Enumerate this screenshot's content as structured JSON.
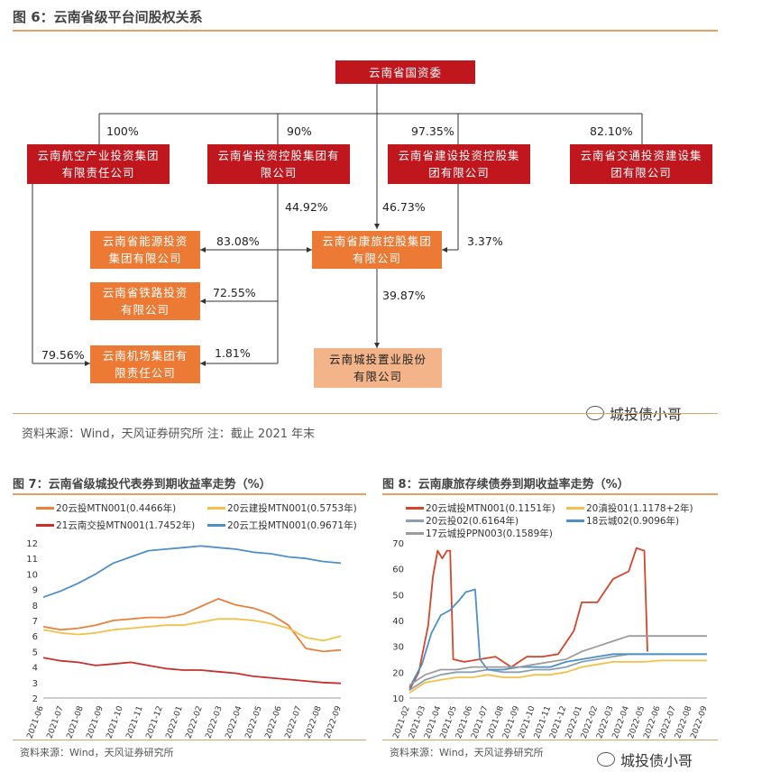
{
  "fig6": {
    "title": "图 6：云南省级平台间股权关系",
    "source": "资料来源：Wind，天风证券研究所    注：截止 2021 年末",
    "nodes": {
      "root": "云南省国资委",
      "aviation": "云南航空产业投资集团有限责任公司",
      "investment": "云南省投资控股集团有限公司",
      "construction": "云南省建设投资控股集团有限公司",
      "transport": "云南省交通投资建设集团有限公司",
      "energy": "云南省能源投资集团有限公司",
      "railway": "云南省铁路投资有限公司",
      "airport": "云南机场集团有限责任公司",
      "kanglv": "云南省康旅控股集团有限公司",
      "city": "云南城投置业股份有限公司"
    },
    "edges": {
      "aviation": "100%",
      "investment": "90%",
      "construction": "97.35%",
      "transport": "82.10%",
      "inv_kanglv": "44.92%",
      "root_kanglv": "46.73%",
      "energy": "83.08%",
      "railway": "72.55%",
      "airport_aviation": "79.56%",
      "airport_inv": "1.81%",
      "construction_kanglv": "3.37%",
      "kanglv_city": "39.87%"
    }
  },
  "watermark": "城投债小哥",
  "fig7": {
    "title": "图 7：云南省级城投代表券到期收益率走势（%）",
    "source": "资料来源：Wind，天风证券研究所"
  },
  "fig8": {
    "title": "图 8：云南康旅存续债券到期收益率走势（%）",
    "source": "资料来源：Wind，天风证券研究所"
  },
  "chart_data": [
    {
      "type": "line",
      "title": "图 7：云南省级城投代表券到期收益率走势（%）",
      "ylim": [
        2,
        12
      ],
      "yticks": [
        2,
        3,
        4,
        5,
        6,
        7,
        8,
        9,
        10,
        11,
        12
      ],
      "xticks": [
        "2021-06",
        "2021-07",
        "2021-08",
        "2021-09",
        "2021-10",
        "2021-11",
        "2021-12",
        "2022-01",
        "2022-02",
        "2022-03",
        "2022-04",
        "2022-05",
        "2022-06",
        "2022-07",
        "2022-08",
        "2022-09"
      ],
      "series": [
        {
          "name": "20云投MTN001(0.4466年)",
          "color": "#e8813a",
          "values": [
            6.6,
            6.4,
            6.5,
            6.7,
            7.0,
            7.1,
            7.2,
            7.2,
            7.4,
            7.9,
            8.4,
            8.0,
            7.8,
            7.4,
            6.7,
            5.2,
            5.0,
            5.1
          ]
        },
        {
          "name": "20云建投MTN001(0.5753年)",
          "color": "#f2c14a",
          "values": [
            6.4,
            6.2,
            6.1,
            6.2,
            6.4,
            6.5,
            6.6,
            6.7,
            6.7,
            6.9,
            7.1,
            7.1,
            7.0,
            6.8,
            6.5,
            5.9,
            5.7,
            6.0
          ]
        },
        {
          "name": "21云南交投MTN001(1.7452年)",
          "color": "#c9302c",
          "values": [
            4.6,
            4.4,
            4.3,
            4.1,
            4.2,
            4.3,
            4.1,
            3.9,
            3.8,
            3.8,
            3.7,
            3.6,
            3.4,
            3.3,
            3.2,
            3.1,
            3.0,
            2.95
          ]
        },
        {
          "name": "20云工投MTN001(0.9671年)",
          "color": "#4f8fc8",
          "values": [
            8.5,
            8.9,
            9.4,
            10.0,
            10.7,
            11.1,
            11.5,
            11.6,
            11.7,
            11.8,
            11.7,
            11.6,
            11.4,
            11.3,
            11.1,
            11.0,
            10.8,
            10.7
          ]
        }
      ]
    },
    {
      "type": "line",
      "title": "图 8：云南康旅存续债券到期收益率走势（%）",
      "ylim": [
        10,
        70
      ],
      "yticks": [
        10,
        20,
        30,
        40,
        50,
        60,
        70
      ],
      "xticks": [
        "2021-02",
        "2021-03",
        "2021-04",
        "2021-05",
        "2021-06",
        "2021-07",
        "2021-08",
        "2021-09",
        "2021-10",
        "2021-11",
        "2021-12",
        "2022-01",
        "2022-02",
        "2022-03",
        "2022-04",
        "2022-05",
        "2022-06",
        "2022-07",
        "2022-08",
        "2022-09"
      ],
      "series": [
        {
          "name": "20云城投MTN001(0.1151年)",
          "color": "#d6452b",
          "points": [
            [
              0,
              13
            ],
            [
              0.6,
              20
            ],
            [
              1.2,
              38
            ],
            [
              1.5,
              57
            ],
            [
              1.8,
              67
            ],
            [
              2.1,
              64
            ],
            [
              2.4,
              67
            ],
            [
              2.6,
              67
            ],
            [
              2.8,
              25
            ],
            [
              3.5,
              24
            ],
            [
              4.5,
              25
            ],
            [
              5.5,
              26
            ],
            [
              6.5,
              22
            ],
            [
              7.5,
              26
            ],
            [
              8.5,
              26
            ],
            [
              9.5,
              27
            ],
            [
              10.5,
              36
            ],
            [
              11,
              47
            ],
            [
              12,
              47
            ],
            [
              13,
              56
            ],
            [
              14,
              59
            ],
            [
              14.5,
              68
            ],
            [
              15,
              67
            ],
            [
              15.2,
              28
            ]
          ]
        },
        {
          "name": "20滇投01(1.1178+2年)",
          "color": "#f2c14a",
          "points": [
            [
              0,
              12
            ],
            [
              1,
              16
            ],
            [
              2,
              17
            ],
            [
              3,
              18
            ],
            [
              4,
              18
            ],
            [
              5,
              19
            ],
            [
              6,
              18
            ],
            [
              7,
              18
            ],
            [
              8,
              19
            ],
            [
              9,
              19
            ],
            [
              10,
              20
            ],
            [
              11,
              22
            ],
            [
              12,
              23
            ],
            [
              13,
              24
            ],
            [
              14,
              24
            ],
            [
              15,
              24
            ],
            [
              16,
              24.5
            ],
            [
              17,
              24.5
            ],
            [
              18,
              24.5
            ],
            [
              19,
              24.5
            ]
          ]
        },
        {
          "name": "20云投02(0.6164年)",
          "color": "#8aa0b0",
          "points": [
            [
              0,
              13
            ],
            [
              1,
              17
            ],
            [
              2,
              19
            ],
            [
              3,
              20
            ],
            [
              4,
              20
            ],
            [
              5,
              21
            ],
            [
              6,
              20
            ],
            [
              7,
              20
            ],
            [
              8,
              21
            ],
            [
              9,
              21
            ],
            [
              10,
              22
            ],
            [
              11,
              24
            ],
            [
              12,
              25
            ],
            [
              13,
              26
            ],
            [
              14,
              27
            ],
            [
              15,
              27
            ],
            [
              16,
              27
            ],
            [
              17,
              27
            ],
            [
              18,
              27
            ],
            [
              19,
              27
            ]
          ]
        },
        {
          "name": "18云城02(0.9096年)",
          "color": "#4f8fc8",
          "points": [
            [
              0,
              14
            ],
            [
              0.8,
              23
            ],
            [
              1.4,
              35
            ],
            [
              2,
              42
            ],
            [
              2.6,
              44
            ],
            [
              3.2,
              48
            ],
            [
              3.6,
              51
            ],
            [
              4.2,
              52
            ],
            [
              4.5,
              25
            ],
            [
              5,
              21
            ],
            [
              6,
              21
            ],
            [
              7,
              22
            ],
            [
              8,
              22
            ],
            [
              9,
              22
            ],
            [
              10,
              24
            ],
            [
              11,
              25
            ],
            [
              12,
              26
            ],
            [
              13,
              27
            ],
            [
              14,
              27
            ],
            [
              15,
              27
            ],
            [
              16,
              27
            ],
            [
              17,
              27
            ],
            [
              18,
              27
            ],
            [
              19,
              27
            ]
          ]
        },
        {
          "name": "17云城投PPN003(0.1589年)",
          "color": "#9c9c9c",
          "points": [
            [
              0,
              15
            ],
            [
              1,
              19
            ],
            [
              2,
              21
            ],
            [
              3,
              21
            ],
            [
              4,
              22
            ],
            [
              5,
              22
            ],
            [
              6,
              22
            ],
            [
              7,
              22
            ],
            [
              8,
              23
            ],
            [
              9,
              24
            ],
            [
              10,
              25
            ],
            [
              11,
              28
            ],
            [
              12,
              30
            ],
            [
              13,
              32
            ],
            [
              14,
              34
            ],
            [
              15,
              34
            ],
            [
              16,
              34
            ],
            [
              17,
              34
            ],
            [
              18,
              34
            ],
            [
              19,
              34
            ]
          ]
        }
      ]
    }
  ]
}
